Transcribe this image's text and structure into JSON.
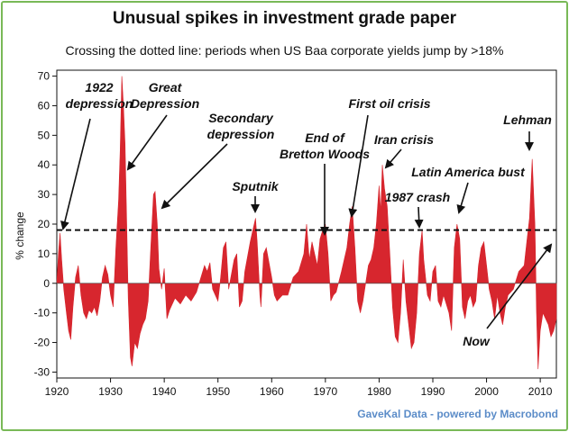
{
  "chart_data": {
    "type": "area",
    "title": "Unusual spikes in investment grade paper",
    "subtitle": "Crossing the dotted line: periods when US Baa corporate yields jump by >18%",
    "ylabel": "% change",
    "xlabel": "",
    "xlim": [
      1920,
      2013
    ],
    "ylim": [
      -32,
      72
    ],
    "threshold": 18,
    "x_ticks": [
      1920,
      1930,
      1940,
      1950,
      1960,
      1970,
      1980,
      1990,
      2000,
      2010
    ],
    "y_ticks": [
      70,
      60,
      50,
      40,
      30,
      20,
      10,
      0,
      -10,
      -20,
      -30
    ],
    "fill_color": "#d7262e",
    "series": [
      {
        "name": "US Baa corporate yield, % change",
        "points": [
          [
            1920,
            0
          ],
          [
            1920.3,
            10
          ],
          [
            1920.6,
            17
          ],
          [
            1920.9,
            8
          ],
          [
            1921.3,
            -2
          ],
          [
            1921.8,
            -10
          ],
          [
            1922.2,
            -16
          ],
          [
            1922.6,
            -19
          ],
          [
            1923,
            -8
          ],
          [
            1923.5,
            2
          ],
          [
            1924,
            6
          ],
          [
            1924.5,
            -4
          ],
          [
            1925,
            -10
          ],
          [
            1925.5,
            -12
          ],
          [
            1926,
            -9
          ],
          [
            1926.5,
            -10
          ],
          [
            1927,
            -8
          ],
          [
            1927.5,
            -11
          ],
          [
            1928,
            -6
          ],
          [
            1928.5,
            2
          ],
          [
            1929,
            6
          ],
          [
            1929.5,
            3
          ],
          [
            1930,
            -4
          ],
          [
            1930.5,
            -8
          ],
          [
            1931,
            12
          ],
          [
            1931.5,
            28
          ],
          [
            1931.8,
            45
          ],
          [
            1932.1,
            70
          ],
          [
            1932.4,
            60
          ],
          [
            1932.7,
            47
          ],
          [
            1933,
            22
          ],
          [
            1933.3,
            -5
          ],
          [
            1933.7,
            -25
          ],
          [
            1934,
            -28
          ],
          [
            1934.5,
            -20
          ],
          [
            1935,
            -22
          ],
          [
            1935.5,
            -17
          ],
          [
            1936,
            -14
          ],
          [
            1936.5,
            -12
          ],
          [
            1937,
            -6
          ],
          [
            1937.5,
            12
          ],
          [
            1938,
            30
          ],
          [
            1938.3,
            31
          ],
          [
            1938.7,
            20
          ],
          [
            1939,
            5
          ],
          [
            1939.5,
            -2
          ],
          [
            1940,
            5
          ],
          [
            1940.5,
            -12
          ],
          [
            1941,
            -9
          ],
          [
            1942,
            -5
          ],
          [
            1943,
            -7
          ],
          [
            1944,
            -4
          ],
          [
            1945,
            -6
          ],
          [
            1946,
            -3
          ],
          [
            1947,
            3
          ],
          [
            1947.5,
            6
          ],
          [
            1948,
            4
          ],
          [
            1948.5,
            7
          ],
          [
            1949,
            -2
          ],
          [
            1950,
            -6
          ],
          [
            1950.5,
            2
          ],
          [
            1951,
            12
          ],
          [
            1951.5,
            14
          ],
          [
            1952,
            -2
          ],
          [
            1953,
            8
          ],
          [
            1953.5,
            10
          ],
          [
            1954,
            -8
          ],
          [
            1954.5,
            -6
          ],
          [
            1955,
            4
          ],
          [
            1956,
            14
          ],
          [
            1956.5,
            18
          ],
          [
            1957,
            22
          ],
          [
            1957.3,
            14
          ],
          [
            1957.8,
            -4
          ],
          [
            1958,
            -8
          ],
          [
            1958.5,
            10
          ],
          [
            1959,
            12
          ],
          [
            1960,
            2
          ],
          [
            1960.5,
            -4
          ],
          [
            1961,
            -6
          ],
          [
            1962,
            -4
          ],
          [
            1963,
            -4
          ],
          [
            1964,
            2
          ],
          [
            1965,
            4
          ],
          [
            1966,
            10
          ],
          [
            1966.5,
            20
          ],
          [
            1967,
            8
          ],
          [
            1967.5,
            14
          ],
          [
            1968,
            10
          ],
          [
            1968.5,
            6
          ],
          [
            1969,
            15
          ],
          [
            1969.5,
            18
          ],
          [
            1970,
            20
          ],
          [
            1970.5,
            10
          ],
          [
            1971,
            -6
          ],
          [
            1971.5,
            -4
          ],
          [
            1972,
            -3
          ],
          [
            1973,
            4
          ],
          [
            1974,
            12
          ],
          [
            1974.5,
            20
          ],
          [
            1975,
            26
          ],
          [
            1975.5,
            12
          ],
          [
            1976,
            -6
          ],
          [
            1976.5,
            -10
          ],
          [
            1977,
            -6
          ],
          [
            1977.5,
            0
          ],
          [
            1978,
            6
          ],
          [
            1978.5,
            8
          ],
          [
            1979,
            12
          ],
          [
            1979.5,
            20
          ],
          [
            1980,
            33
          ],
          [
            1980.3,
            24
          ],
          [
            1980.6,
            40
          ],
          [
            1981,
            32
          ],
          [
            1981.5,
            26
          ],
          [
            1982,
            10
          ],
          [
            1982.5,
            -8
          ],
          [
            1983,
            -18
          ],
          [
            1983.5,
            -20
          ],
          [
            1984,
            -10
          ],
          [
            1984.5,
            8
          ],
          [
            1985,
            -6
          ],
          [
            1985.5,
            -14
          ],
          [
            1986,
            -22
          ],
          [
            1986.5,
            -20
          ],
          [
            1987,
            -10
          ],
          [
            1987.5,
            10
          ],
          [
            1988,
            18
          ],
          [
            1988.3,
            8
          ],
          [
            1989,
            -4
          ],
          [
            1989.5,
            -6
          ],
          [
            1990,
            4
          ],
          [
            1990.5,
            6
          ],
          [
            1991,
            -6
          ],
          [
            1991.5,
            -8
          ],
          [
            1992,
            -4
          ],
          [
            1993,
            -10
          ],
          [
            1993.5,
            -16
          ],
          [
            1994,
            12
          ],
          [
            1994.5,
            20
          ],
          [
            1995,
            15
          ],
          [
            1995.5,
            -8
          ],
          [
            1996,
            -12
          ],
          [
            1996.5,
            -6
          ],
          [
            1997,
            -4
          ],
          [
            1997.5,
            -8
          ],
          [
            1998,
            -6
          ],
          [
            1998.5,
            6
          ],
          [
            1999,
            12
          ],
          [
            1999.5,
            14
          ],
          [
            2000,
            6
          ],
          [
            2000.5,
            -2
          ],
          [
            2001,
            -6
          ],
          [
            2001.5,
            -12
          ],
          [
            2002,
            -4
          ],
          [
            2002.5,
            -10
          ],
          [
            2003,
            -14
          ],
          [
            2003.5,
            -8
          ],
          [
            2004,
            -4
          ],
          [
            2005,
            -2
          ],
          [
            2006,
            4
          ],
          [
            2007,
            6
          ],
          [
            2007.5,
            14
          ],
          [
            2008,
            22
          ],
          [
            2008.5,
            42
          ],
          [
            2009,
            20
          ],
          [
            2009.3,
            -10
          ],
          [
            2009.6,
            -29
          ],
          [
            2010,
            -16
          ],
          [
            2010.5,
            -10
          ],
          [
            2011,
            -12
          ],
          [
            2011.5,
            -14
          ],
          [
            2012,
            -18
          ],
          [
            2012.5,
            -16
          ],
          [
            2013,
            -12
          ]
        ]
      }
    ],
    "annotations": [
      {
        "id": "1922",
        "lines": [
          "1922",
          "depression"
        ]
      },
      {
        "id": "great",
        "lines": [
          "Great",
          "Depression"
        ]
      },
      {
        "id": "secondary",
        "lines": [
          "Secondary",
          "depression"
        ]
      },
      {
        "id": "sputnik",
        "lines": [
          "Sputnik"
        ]
      },
      {
        "id": "bretton",
        "lines": [
          "End of",
          "Bretton Woods"
        ]
      },
      {
        "id": "oil",
        "lines": [
          "First oil crisis"
        ]
      },
      {
        "id": "iran",
        "lines": [
          "Iran crisis"
        ]
      },
      {
        "id": "crash1987",
        "lines": [
          "1987 crash"
        ]
      },
      {
        "id": "latam",
        "lines": [
          "Latin America bust"
        ]
      },
      {
        "id": "lehman",
        "lines": [
          "Lehman"
        ]
      },
      {
        "id": "now",
        "lines": [
          "Now"
        ]
      }
    ]
  },
  "source": "GaveKal Data - powered by Macrobond"
}
